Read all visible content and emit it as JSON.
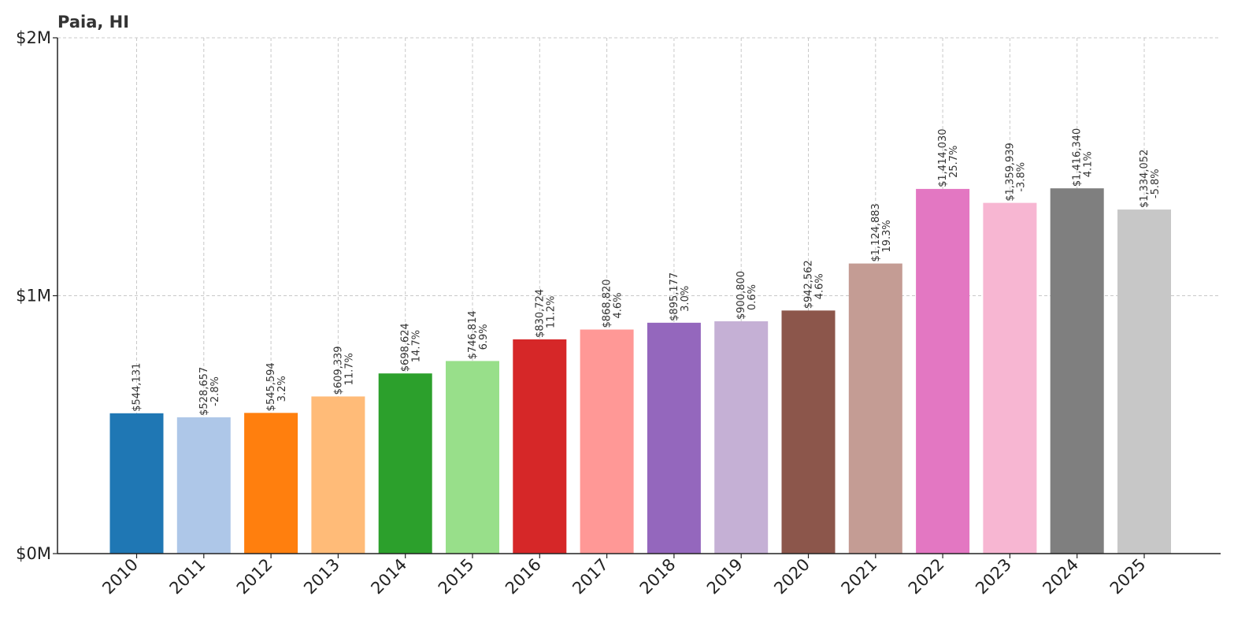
{
  "chart_data": {
    "type": "bar",
    "title": "Paia, HI",
    "xlabel": "",
    "ylabel": "",
    "ylim": [
      0,
      2000000
    ],
    "yticks": [
      {
        "value": 0,
        "label": "$0M"
      },
      {
        "value": 1000000,
        "label": "$1M"
      },
      {
        "value": 2000000,
        "label": "$2M"
      }
    ],
    "grid": true,
    "categories": [
      "2010",
      "2011",
      "2012",
      "2013",
      "2014",
      "2015",
      "2016",
      "2017",
      "2018",
      "2019",
      "2020",
      "2021",
      "2022",
      "2023",
      "2024",
      "2025"
    ],
    "values": [
      544131,
      528657,
      545594,
      609339,
      698624,
      746814,
      830724,
      868820,
      895177,
      900800,
      942562,
      1124883,
      1414030,
      1359939,
      1416340,
      1334052
    ],
    "value_labels": [
      "$544,131",
      "$528,657",
      "$545,594",
      "$609,339",
      "$698,624",
      "$746,814",
      "$830,724",
      "$868,820",
      "$895,177",
      "$900,800",
      "$942,562",
      "$1,124,883",
      "$1,414,030",
      "$1,359,939",
      "$1,416,340",
      "$1,334,052"
    ],
    "change_labels": [
      "",
      "-2.8%",
      "3.2%",
      "11.7%",
      "14.7%",
      "6.9%",
      "11.2%",
      "4.6%",
      "3.0%",
      "0.6%",
      "4.6%",
      "19.3%",
      "25.7%",
      "-3.8%",
      "4.1%",
      "-5.8%"
    ],
    "colors": [
      "#1f77b4",
      "#aec7e8",
      "#ff7f0e",
      "#ffbb78",
      "#2ca02c",
      "#98df8a",
      "#d62728",
      "#ff9896",
      "#9467bd",
      "#c5b0d5",
      "#8c564b",
      "#c49c94",
      "#e377c2",
      "#f7b6d2",
      "#7f7f7f",
      "#c7c7c7"
    ]
  }
}
